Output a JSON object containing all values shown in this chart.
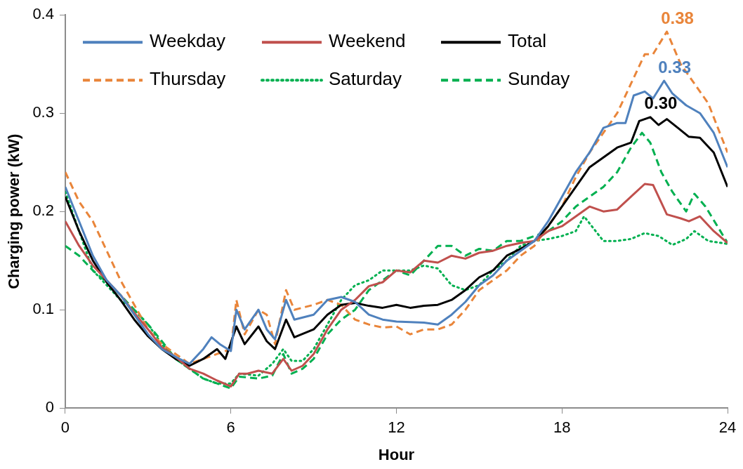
{
  "chart_data": {
    "type": "line",
    "xlabel": "Hour",
    "ylabel": "Charging power (kW)",
    "xlim": [
      0,
      24
    ],
    "xticks": [
      0,
      6,
      12,
      18,
      24
    ],
    "ylim": [
      0,
      0.4
    ],
    "yticks": [
      0,
      0.1,
      0.2,
      0.3,
      0.4
    ],
    "grid": false,
    "legend": "top left",
    "marker": "none",
    "series": [
      {
        "name": "Weekday",
        "color": "#4f81bd",
        "line_style": "solid",
        "x": [
          0,
          0.5,
          1,
          1.5,
          2,
          2.5,
          3,
          3.5,
          4,
          4.5,
          5,
          5.3,
          5.6,
          6,
          6.2,
          6.5,
          7,
          7.3,
          7.6,
          8,
          8.3,
          9,
          9.5,
          10,
          10.5,
          11,
          11.5,
          12,
          13,
          13.5,
          14,
          14.5,
          15,
          15.5,
          16,
          16.5,
          17,
          17.5,
          18,
          18.5,
          19,
          19.5,
          20,
          20.3,
          20.6,
          21,
          21.3,
          21.7,
          22,
          22.5,
          23,
          23.5,
          24
        ],
        "values": [
          0.225,
          0.19,
          0.155,
          0.13,
          0.115,
          0.095,
          0.075,
          0.06,
          0.052,
          0.045,
          0.06,
          0.072,
          0.065,
          0.058,
          0.1,
          0.08,
          0.1,
          0.08,
          0.07,
          0.11,
          0.09,
          0.095,
          0.11,
          0.113,
          0.108,
          0.095,
          0.09,
          0.088,
          0.087,
          0.085,
          0.095,
          0.108,
          0.125,
          0.135,
          0.15,
          0.16,
          0.17,
          0.19,
          0.215,
          0.24,
          0.26,
          0.285,
          0.29,
          0.29,
          0.318,
          0.322,
          0.315,
          0.333,
          0.32,
          0.308,
          0.3,
          0.28,
          0.245
        ]
      },
      {
        "name": "Weekend",
        "color": "#c0504d",
        "line_style": "solid",
        "x": [
          0,
          0.5,
          1,
          1.5,
          2,
          2.5,
          3,
          3.5,
          4,
          4.5,
          5,
          5.5,
          6,
          6.3,
          6.6,
          7,
          7.5,
          7.9,
          8.2,
          8.6,
          9,
          9.5,
          10,
          10.5,
          11,
          11.5,
          12,
          12.5,
          13,
          13.5,
          14,
          14.5,
          15,
          15.5,
          16,
          16.5,
          17,
          17.5,
          18,
          18.5,
          19,
          19.5,
          20,
          20.5,
          21,
          21.3,
          21.8,
          22.3,
          22.6,
          23,
          23.5,
          24
        ],
        "values": [
          0.19,
          0.165,
          0.145,
          0.13,
          0.115,
          0.097,
          0.08,
          0.062,
          0.052,
          0.04,
          0.035,
          0.028,
          0.022,
          0.035,
          0.035,
          0.038,
          0.035,
          0.05,
          0.038,
          0.043,
          0.055,
          0.08,
          0.1,
          0.11,
          0.124,
          0.128,
          0.14,
          0.138,
          0.15,
          0.148,
          0.155,
          0.152,
          0.158,
          0.16,
          0.165,
          0.168,
          0.17,
          0.18,
          0.185,
          0.195,
          0.205,
          0.2,
          0.202,
          0.215,
          0.228,
          0.227,
          0.197,
          0.193,
          0.19,
          0.195,
          0.18,
          0.168
        ]
      },
      {
        "name": "Total",
        "color": "#000000",
        "line_style": "solid",
        "x": [
          0,
          0.5,
          1,
          1.5,
          2,
          2.5,
          3,
          3.5,
          4,
          4.5,
          5,
          5.5,
          5.8,
          6.2,
          6.5,
          7,
          7.3,
          7.6,
          8,
          8.3,
          9,
          9.5,
          10,
          10.5,
          11,
          11.5,
          12,
          12.5,
          13,
          13.5,
          14,
          14.5,
          15,
          15.5,
          16,
          16.5,
          17,
          17.5,
          18,
          18.5,
          19,
          19.5,
          20,
          20.5,
          20.8,
          21.2,
          21.5,
          21.8,
          22.2,
          22.6,
          23,
          23.5,
          24
        ],
        "values": [
          0.215,
          0.18,
          0.15,
          0.128,
          0.11,
          0.09,
          0.073,
          0.06,
          0.05,
          0.043,
          0.05,
          0.06,
          0.05,
          0.083,
          0.065,
          0.083,
          0.068,
          0.06,
          0.09,
          0.072,
          0.08,
          0.095,
          0.105,
          0.107,
          0.104,
          0.102,
          0.105,
          0.102,
          0.104,
          0.105,
          0.11,
          0.12,
          0.133,
          0.14,
          0.155,
          0.162,
          0.17,
          0.185,
          0.205,
          0.225,
          0.245,
          0.255,
          0.265,
          0.27,
          0.292,
          0.296,
          0.288,
          0.294,
          0.285,
          0.276,
          0.275,
          0.26,
          0.225
        ]
      },
      {
        "name": "Thursday",
        "color": "#e9853a",
        "line_style": "dashed",
        "x": [
          0,
          0.5,
          1,
          1.5,
          2,
          2.5,
          3,
          3.5,
          4,
          4.5,
          5,
          5.5,
          6,
          6.2,
          6.5,
          7,
          7.3,
          7.6,
          8,
          8.3,
          9,
          9.5,
          10,
          10.5,
          11,
          11.5,
          12,
          12.5,
          13,
          13.5,
          14,
          14.5,
          15,
          15.5,
          16,
          16.5,
          17,
          17.5,
          18,
          18.5,
          19,
          19.5,
          20,
          20.5,
          21,
          21.3,
          21.8,
          22.3,
          22.8,
          23.3,
          24
        ],
        "values": [
          0.24,
          0.21,
          0.19,
          0.16,
          0.13,
          0.105,
          0.08,
          0.065,
          0.055,
          0.045,
          0.05,
          0.055,
          0.06,
          0.11,
          0.075,
          0.1,
          0.095,
          0.065,
          0.12,
          0.1,
          0.105,
          0.11,
          0.105,
          0.09,
          0.085,
          0.082,
          0.083,
          0.075,
          0.08,
          0.08,
          0.085,
          0.1,
          0.12,
          0.13,
          0.14,
          0.155,
          0.165,
          0.185,
          0.205,
          0.235,
          0.26,
          0.28,
          0.3,
          0.33,
          0.36,
          0.36,
          0.383,
          0.35,
          0.33,
          0.31,
          0.26
        ]
      },
      {
        "name": "Saturday",
        "color": "#00b050",
        "line_style": "dotted",
        "x": [
          0,
          0.5,
          1,
          1.5,
          2,
          2.5,
          3,
          3.5,
          4,
          4.5,
          5,
          5.5,
          6,
          6.3,
          7,
          7.5,
          7.9,
          8.2,
          8.6,
          9,
          9.5,
          10,
          10.5,
          11,
          11.5,
          12,
          12.5,
          13,
          13.5,
          14,
          14.5,
          15,
          15.5,
          16,
          16.5,
          17,
          17.5,
          18,
          18.5,
          18.8,
          19.5,
          20,
          20.5,
          21,
          21.5,
          22,
          22.5,
          22.8,
          23.3,
          24
        ],
        "values": [
          0.22,
          0.18,
          0.14,
          0.125,
          0.11,
          0.1,
          0.085,
          0.065,
          0.05,
          0.04,
          0.03,
          0.025,
          0.025,
          0.035,
          0.033,
          0.045,
          0.06,
          0.048,
          0.048,
          0.06,
          0.085,
          0.11,
          0.125,
          0.13,
          0.14,
          0.14,
          0.14,
          0.145,
          0.142,
          0.125,
          0.12,
          0.125,
          0.14,
          0.15,
          0.165,
          0.17,
          0.172,
          0.175,
          0.18,
          0.195,
          0.17,
          0.17,
          0.172,
          0.178,
          0.175,
          0.166,
          0.172,
          0.18,
          0.17,
          0.167
        ]
      },
      {
        "name": "Sunday",
        "color": "#00b050",
        "line_style": "dashed",
        "x": [
          0,
          0.5,
          1,
          1.5,
          2,
          2.5,
          3,
          3.5,
          4,
          4.5,
          5,
          5.5,
          6,
          6.3,
          7,
          7.5,
          7.9,
          8.2,
          8.6,
          9,
          9.5,
          10,
          10.5,
          11,
          11.5,
          12,
          12.5,
          13,
          13.5,
          14,
          14.5,
          15,
          15.5,
          16,
          16.5,
          17,
          17.5,
          18,
          18.5,
          19,
          19.5,
          20,
          20.5,
          20.9,
          21.2,
          21.6,
          22,
          22.5,
          22.8,
          23.2,
          24
        ],
        "values": [
          0.165,
          0.155,
          0.14,
          0.128,
          0.115,
          0.1,
          0.085,
          0.068,
          0.05,
          0.04,
          0.03,
          0.025,
          0.02,
          0.032,
          0.03,
          0.033,
          0.055,
          0.035,
          0.04,
          0.05,
          0.075,
          0.09,
          0.1,
          0.12,
          0.13,
          0.14,
          0.135,
          0.15,
          0.165,
          0.165,
          0.155,
          0.162,
          0.16,
          0.17,
          0.17,
          0.175,
          0.18,
          0.19,
          0.205,
          0.215,
          0.225,
          0.24,
          0.265,
          0.28,
          0.27,
          0.24,
          0.22,
          0.2,
          0.218,
          0.205,
          0.168
        ]
      }
    ],
    "annotations": [
      {
        "text": "0.38",
        "x": 21.8,
        "y": 0.383
      },
      {
        "text": "0.33",
        "x": 21.7,
        "y": 0.333
      },
      {
        "text": "0.30",
        "x": 21.2,
        "y": 0.296
      }
    ]
  }
}
